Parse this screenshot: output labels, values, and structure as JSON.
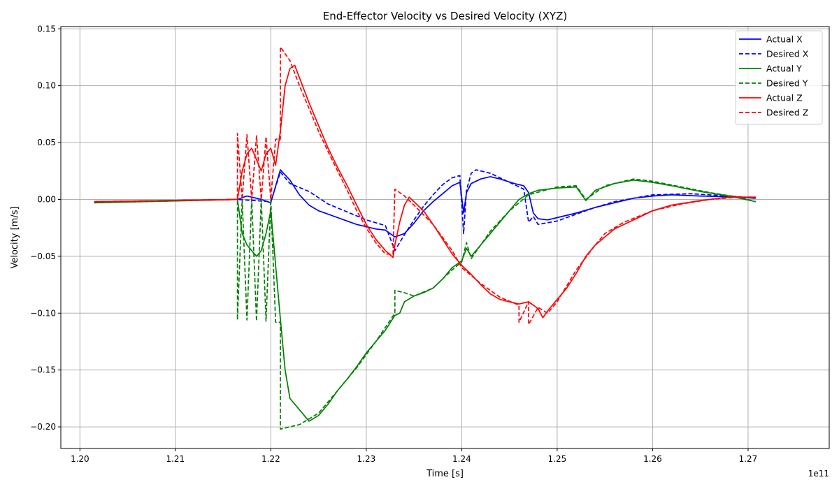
{
  "chart_data": {
    "type": "line",
    "title": "End-Effector Velocity vs Desired Velocity (XYZ)",
    "xlabel": "Time [s]",
    "ylabel": "Velocity [m/s]",
    "x_offset_label": "1e11",
    "xlim": [
      1.198,
      1.2785
    ],
    "ylim": [
      -0.219,
      0.152
    ],
    "x_ticks": [
      1.2,
      1.21,
      1.22,
      1.23,
      1.24,
      1.25,
      1.26,
      1.27
    ],
    "x_tick_labels": [
      "1.20",
      "1.21",
      "1.22",
      "1.23",
      "1.24",
      "1.25",
      "1.26",
      "1.27"
    ],
    "y_ticks": [
      -0.2,
      -0.15,
      -0.1,
      -0.05,
      0.0,
      0.05,
      0.1,
      0.15
    ],
    "y_tick_labels": [
      "−0.20",
      "−0.15",
      "−0.10",
      "−0.05",
      "0.00",
      "0.05",
      "0.10",
      "0.15"
    ],
    "grid": true,
    "legend_position": "top-right",
    "series": [
      {
        "name": "Actual X",
        "color": "#0000ff",
        "style": "solid",
        "points": [
          [
            1.2015,
            -0.002
          ],
          [
            1.2165,
            0.0
          ],
          [
            1.2175,
            0.003
          ],
          [
            1.219,
            0.0
          ],
          [
            1.22,
            -0.003
          ],
          [
            1.221,
            0.026
          ],
          [
            1.222,
            0.017
          ],
          [
            1.223,
            0.004
          ],
          [
            1.224,
            -0.005
          ],
          [
            1.225,
            -0.01
          ],
          [
            1.226,
            -0.013
          ],
          [
            1.227,
            -0.016
          ],
          [
            1.228,
            -0.019
          ],
          [
            1.229,
            -0.022
          ],
          [
            1.23,
            -0.024
          ],
          [
            1.231,
            -0.026
          ],
          [
            1.232,
            -0.027
          ],
          [
            1.233,
            -0.033
          ],
          [
            1.234,
            -0.03
          ],
          [
            1.235,
            -0.021
          ],
          [
            1.236,
            -0.01
          ],
          [
            1.237,
            -0.002
          ],
          [
            1.238,
            0.005
          ],
          [
            1.239,
            0.012
          ],
          [
            1.2398,
            0.015
          ],
          [
            1.2402,
            -0.012
          ],
          [
            1.2405,
            0.006
          ],
          [
            1.241,
            0.014
          ],
          [
            1.242,
            0.018
          ],
          [
            1.243,
            0.02
          ],
          [
            1.244,
            0.018
          ],
          [
            1.2455,
            0.014
          ],
          [
            1.2465,
            0.012
          ],
          [
            1.247,
            0.006
          ],
          [
            1.2475,
            -0.012
          ],
          [
            1.248,
            -0.017
          ],
          [
            1.249,
            -0.018
          ],
          [
            1.25,
            -0.016
          ],
          [
            1.252,
            -0.012
          ],
          [
            1.254,
            -0.007
          ],
          [
            1.256,
            -0.003
          ],
          [
            1.258,
            0.001
          ],
          [
            1.26,
            0.003
          ],
          [
            1.262,
            0.004
          ],
          [
            1.265,
            0.003
          ],
          [
            1.269,
            0.002
          ],
          [
            1.2708,
            0.001
          ]
        ]
      },
      {
        "name": "Desired X",
        "color": "#0000ff",
        "style": "dashed",
        "points": [
          [
            1.2015,
            -0.002
          ],
          [
            1.2165,
            0.0
          ],
          [
            1.22,
            -0.002
          ],
          [
            1.221,
            0.024
          ],
          [
            1.222,
            0.014
          ],
          [
            1.224,
            0.007
          ],
          [
            1.226,
            -0.004
          ],
          [
            1.228,
            -0.011
          ],
          [
            1.23,
            -0.018
          ],
          [
            1.232,
            -0.023
          ],
          [
            1.233,
            -0.045
          ],
          [
            1.234,
            -0.031
          ],
          [
            1.235,
            -0.018
          ],
          [
            1.236,
            -0.006
          ],
          [
            1.237,
            0.004
          ],
          [
            1.238,
            0.013
          ],
          [
            1.239,
            0.019
          ],
          [
            1.2398,
            0.021
          ],
          [
            1.2402,
            -0.03
          ],
          [
            1.2405,
            0.008
          ],
          [
            1.241,
            0.023
          ],
          [
            1.2415,
            0.026
          ],
          [
            1.243,
            0.023
          ],
          [
            1.245,
            0.015
          ],
          [
            1.2465,
            0.009
          ],
          [
            1.247,
            -0.02
          ],
          [
            1.2475,
            -0.015
          ],
          [
            1.248,
            -0.022
          ],
          [
            1.25,
            -0.019
          ],
          [
            1.252,
            -0.013
          ],
          [
            1.254,
            -0.007
          ],
          [
            1.256,
            -0.002
          ],
          [
            1.258,
            0.001
          ],
          [
            1.26,
            0.004
          ],
          [
            1.264,
            0.005
          ],
          [
            1.268,
            0.003
          ],
          [
            1.2708,
            0.001
          ]
        ]
      },
      {
        "name": "Actual Y",
        "color": "#008000",
        "style": "solid",
        "points": [
          [
            1.2015,
            -0.003
          ],
          [
            1.2165,
            0.0
          ],
          [
            1.217,
            -0.03
          ],
          [
            1.2175,
            -0.04
          ],
          [
            1.218,
            -0.045
          ],
          [
            1.2185,
            -0.05
          ],
          [
            1.219,
            -0.045
          ],
          [
            1.2195,
            -0.03
          ],
          [
            1.22,
            -0.01
          ],
          [
            1.221,
            -0.105
          ],
          [
            1.2215,
            -0.15
          ],
          [
            1.222,
            -0.175
          ],
          [
            1.223,
            -0.185
          ],
          [
            1.224,
            -0.195
          ],
          [
            1.225,
            -0.19
          ],
          [
            1.226,
            -0.18
          ],
          [
            1.227,
            -0.168
          ],
          [
            1.228,
            -0.158
          ],
          [
            1.229,
            -0.147
          ],
          [
            1.23,
            -0.135
          ],
          [
            1.231,
            -0.125
          ],
          [
            1.232,
            -0.115
          ],
          [
            1.233,
            -0.102
          ],
          [
            1.2335,
            -0.1
          ],
          [
            1.234,
            -0.09
          ],
          [
            1.235,
            -0.085
          ],
          [
            1.236,
            -0.082
          ],
          [
            1.237,
            -0.078
          ],
          [
            1.238,
            -0.07
          ],
          [
            1.239,
            -0.06
          ],
          [
            1.24,
            -0.054
          ],
          [
            1.2405,
            -0.043
          ],
          [
            1.241,
            -0.05
          ],
          [
            1.242,
            -0.04
          ],
          [
            1.243,
            -0.03
          ],
          [
            1.244,
            -0.02
          ],
          [
            1.245,
            -0.01
          ],
          [
            1.246,
            0.0
          ],
          [
            1.247,
            0.005
          ],
          [
            1.248,
            0.008
          ],
          [
            1.25,
            0.01
          ],
          [
            1.252,
            0.011
          ],
          [
            1.253,
            -0.001
          ],
          [
            1.254,
            0.008
          ],
          [
            1.256,
            0.014
          ],
          [
            1.258,
            0.017
          ],
          [
            1.26,
            0.015
          ],
          [
            1.262,
            0.012
          ],
          [
            1.265,
            0.007
          ],
          [
            1.268,
            0.003
          ],
          [
            1.2708,
            -0.002
          ]
        ]
      },
      {
        "name": "Desired Y",
        "color": "#008000",
        "style": "dashed",
        "points": [
          [
            1.2015,
            -0.003
          ],
          [
            1.2165,
            0.0
          ],
          [
            1.2165,
            -0.106
          ],
          [
            1.217,
            0.0
          ],
          [
            1.2175,
            -0.106
          ],
          [
            1.218,
            0.0
          ],
          [
            1.2185,
            -0.107
          ],
          [
            1.219,
            0.0
          ],
          [
            1.2195,
            -0.107
          ],
          [
            1.22,
            0.0
          ],
          [
            1.2205,
            -0.108
          ],
          [
            1.221,
            -0.108
          ],
          [
            1.221,
            -0.202
          ],
          [
            1.223,
            -0.198
          ],
          [
            1.225,
            -0.188
          ],
          [
            1.227,
            -0.168
          ],
          [
            1.229,
            -0.148
          ],
          [
            1.231,
            -0.125
          ],
          [
            1.233,
            -0.1
          ],
          [
            1.233,
            -0.08
          ],
          [
            1.234,
            -0.082
          ],
          [
            1.235,
            -0.085
          ],
          [
            1.237,
            -0.078
          ],
          [
            1.239,
            -0.062
          ],
          [
            1.24,
            -0.055
          ],
          [
            1.2405,
            -0.038
          ],
          [
            1.241,
            -0.052
          ],
          [
            1.243,
            -0.028
          ],
          [
            1.245,
            -0.01
          ],
          [
            1.247,
            0.004
          ],
          [
            1.25,
            0.011
          ],
          [
            1.252,
            0.012
          ],
          [
            1.253,
            0.0
          ],
          [
            1.255,
            0.012
          ],
          [
            1.258,
            0.018
          ],
          [
            1.26,
            0.016
          ],
          [
            1.263,
            0.011
          ],
          [
            1.266,
            0.006
          ],
          [
            1.269,
            0.002
          ],
          [
            1.2708,
            -0.002
          ]
        ]
      },
      {
        "name": "Actual Z",
        "color": "#ff0000",
        "style": "solid",
        "points": [
          [
            1.2015,
            -0.002
          ],
          [
            1.2165,
            0.0
          ],
          [
            1.217,
            0.025
          ],
          [
            1.2175,
            0.04
          ],
          [
            1.218,
            0.045
          ],
          [
            1.2185,
            0.035
          ],
          [
            1.219,
            0.025
          ],
          [
            1.2195,
            0.04
          ],
          [
            1.22,
            0.045
          ],
          [
            1.2205,
            0.03
          ],
          [
            1.221,
            0.06
          ],
          [
            1.2215,
            0.1
          ],
          [
            1.222,
            0.115
          ],
          [
            1.2225,
            0.118
          ],
          [
            1.223,
            0.107
          ],
          [
            1.224,
            0.085
          ],
          [
            1.225,
            0.065
          ],
          [
            1.226,
            0.045
          ],
          [
            1.227,
            0.028
          ],
          [
            1.228,
            0.012
          ],
          [
            1.229,
            -0.005
          ],
          [
            1.23,
            -0.022
          ],
          [
            1.231,
            -0.035
          ],
          [
            1.232,
            -0.045
          ],
          [
            1.2328,
            -0.051
          ],
          [
            1.233,
            -0.04
          ],
          [
            1.2335,
            -0.02
          ],
          [
            1.234,
            -0.005
          ],
          [
            1.2345,
            0.002
          ],
          [
            1.235,
            -0.002
          ],
          [
            1.236,
            -0.01
          ],
          [
            1.237,
            -0.022
          ],
          [
            1.238,
            -0.035
          ],
          [
            1.239,
            -0.048
          ],
          [
            1.24,
            -0.058
          ],
          [
            1.241,
            -0.066
          ],
          [
            1.242,
            -0.075
          ],
          [
            1.243,
            -0.083
          ],
          [
            1.244,
            -0.088
          ],
          [
            1.245,
            -0.09
          ],
          [
            1.246,
            -0.092
          ],
          [
            1.247,
            -0.09
          ],
          [
            1.248,
            -0.096
          ],
          [
            1.2485,
            -0.104
          ],
          [
            1.249,
            -0.098
          ],
          [
            1.25,
            -0.088
          ],
          [
            1.251,
            -0.078
          ],
          [
            1.252,
            -0.065
          ],
          [
            1.253,
            -0.05
          ],
          [
            1.254,
            -0.04
          ],
          [
            1.255,
            -0.033
          ],
          [
            1.256,
            -0.026
          ],
          [
            1.258,
            -0.018
          ],
          [
            1.26,
            -0.01
          ],
          [
            1.262,
            -0.005
          ],
          [
            1.265,
            -0.001
          ],
          [
            1.268,
            0.002
          ],
          [
            1.2708,
            0.002
          ]
        ]
      },
      {
        "name": "Desired Z",
        "color": "#ff0000",
        "style": "dashed",
        "points": [
          [
            1.2015,
            -0.002
          ],
          [
            1.2165,
            0.0
          ],
          [
            1.2165,
            0.058
          ],
          [
            1.217,
            0.0
          ],
          [
            1.2175,
            0.057
          ],
          [
            1.218,
            0.0
          ],
          [
            1.2185,
            0.056
          ],
          [
            1.219,
            0.0
          ],
          [
            1.2195,
            0.055
          ],
          [
            1.22,
            0.0
          ],
          [
            1.2205,
            0.053
          ],
          [
            1.221,
            0.053
          ],
          [
            1.221,
            0.134
          ],
          [
            1.222,
            0.122
          ],
          [
            1.223,
            0.1
          ],
          [
            1.224,
            0.08
          ],
          [
            1.225,
            0.06
          ],
          [
            1.226,
            0.042
          ],
          [
            1.227,
            0.025
          ],
          [
            1.228,
            0.008
          ],
          [
            1.229,
            -0.01
          ],
          [
            1.23,
            -0.025
          ],
          [
            1.231,
            -0.038
          ],
          [
            1.232,
            -0.048
          ],
          [
            1.2328,
            -0.048
          ],
          [
            1.233,
            0.009
          ],
          [
            1.234,
            0.003
          ],
          [
            1.235,
            -0.005
          ],
          [
            1.237,
            -0.022
          ],
          [
            1.239,
            -0.045
          ],
          [
            1.24,
            -0.06
          ],
          [
            1.242,
            -0.074
          ],
          [
            1.244,
            -0.086
          ],
          [
            1.246,
            -0.093
          ],
          [
            1.246,
            -0.108
          ],
          [
            1.247,
            -0.09
          ],
          [
            1.247,
            -0.11
          ],
          [
            1.248,
            -0.095
          ],
          [
            1.249,
            -0.1
          ],
          [
            1.25,
            -0.09
          ],
          [
            1.252,
            -0.062
          ],
          [
            1.254,
            -0.04
          ],
          [
            1.255,
            -0.03
          ],
          [
            1.257,
            -0.02
          ],
          [
            1.26,
            -0.01
          ],
          [
            1.263,
            -0.004
          ],
          [
            1.266,
            0.0
          ],
          [
            1.269,
            0.002
          ],
          [
            1.2708,
            0.002
          ]
        ]
      }
    ]
  }
}
